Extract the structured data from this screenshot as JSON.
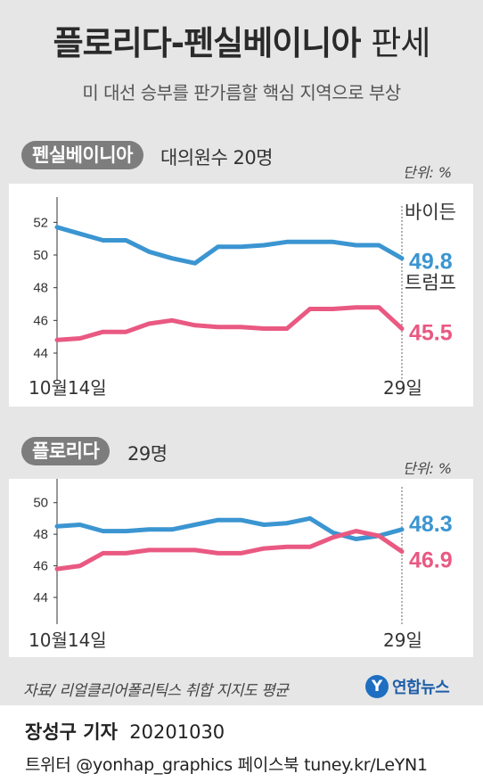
{
  "title": {
    "main": "플로리다-펜실베이니아",
    "suffix": "판세"
  },
  "subtitle": "미 대선 승부를 판가름할 핵심 지역으로 부상",
  "source": "자료/ 리얼클리어폴리틱스 취합 지지도 평균",
  "agency": "연합뉴스",
  "credit": {
    "reporter": "장성구 기자",
    "date": "20201030"
  },
  "social": "트위터 @yonhap_graphics  페이스북 tuney.kr/LeYN1",
  "colors": {
    "biden": "#3b95d1",
    "trump": "#e95982"
  },
  "chart_data": [
    {
      "type": "line",
      "state": "펜실베이니아",
      "note": "대의원수 20명",
      "unit": "단위: %",
      "x_start_label": "10월14일",
      "x_end_label": "29일",
      "ylim": [
        44,
        53
      ],
      "yticks": [
        "52",
        "50",
        "48",
        "46",
        "44"
      ],
      "series": [
        {
          "name": "바이든",
          "final_label": "49.8",
          "values": [
            51.7,
            51.3,
            50.9,
            50.9,
            50.2,
            49.8,
            49.5,
            50.5,
            50.5,
            50.6,
            50.8,
            50.8,
            50.8,
            50.6,
            50.6,
            49.8
          ]
        },
        {
          "name": "트럼프",
          "final_label": "45.5",
          "values": [
            44.8,
            44.9,
            45.3,
            45.3,
            45.8,
            46.0,
            45.7,
            45.6,
            45.6,
            45.5,
            45.5,
            46.7,
            46.7,
            46.8,
            46.8,
            45.5
          ]
        }
      ]
    },
    {
      "type": "line",
      "state": "플로리다",
      "note": "29명",
      "unit": "단위: %",
      "x_start_label": "10월14일",
      "x_end_label": "29일",
      "ylim": [
        44,
        51
      ],
      "yticks": [
        "50",
        "48",
        "46",
        "44"
      ],
      "series": [
        {
          "name": "바이든",
          "final_label": "48.3",
          "values": [
            48.5,
            48.6,
            48.2,
            48.2,
            48.3,
            48.3,
            48.6,
            48.9,
            48.9,
            48.6,
            48.7,
            49.0,
            48.1,
            47.7,
            47.9,
            48.3
          ]
        },
        {
          "name": "트럼프",
          "final_label": "46.9",
          "values": [
            45.8,
            46.0,
            46.8,
            46.8,
            47.0,
            47.0,
            47.0,
            46.8,
            46.8,
            47.1,
            47.2,
            47.2,
            47.8,
            48.2,
            47.9,
            46.9
          ]
        }
      ]
    }
  ]
}
